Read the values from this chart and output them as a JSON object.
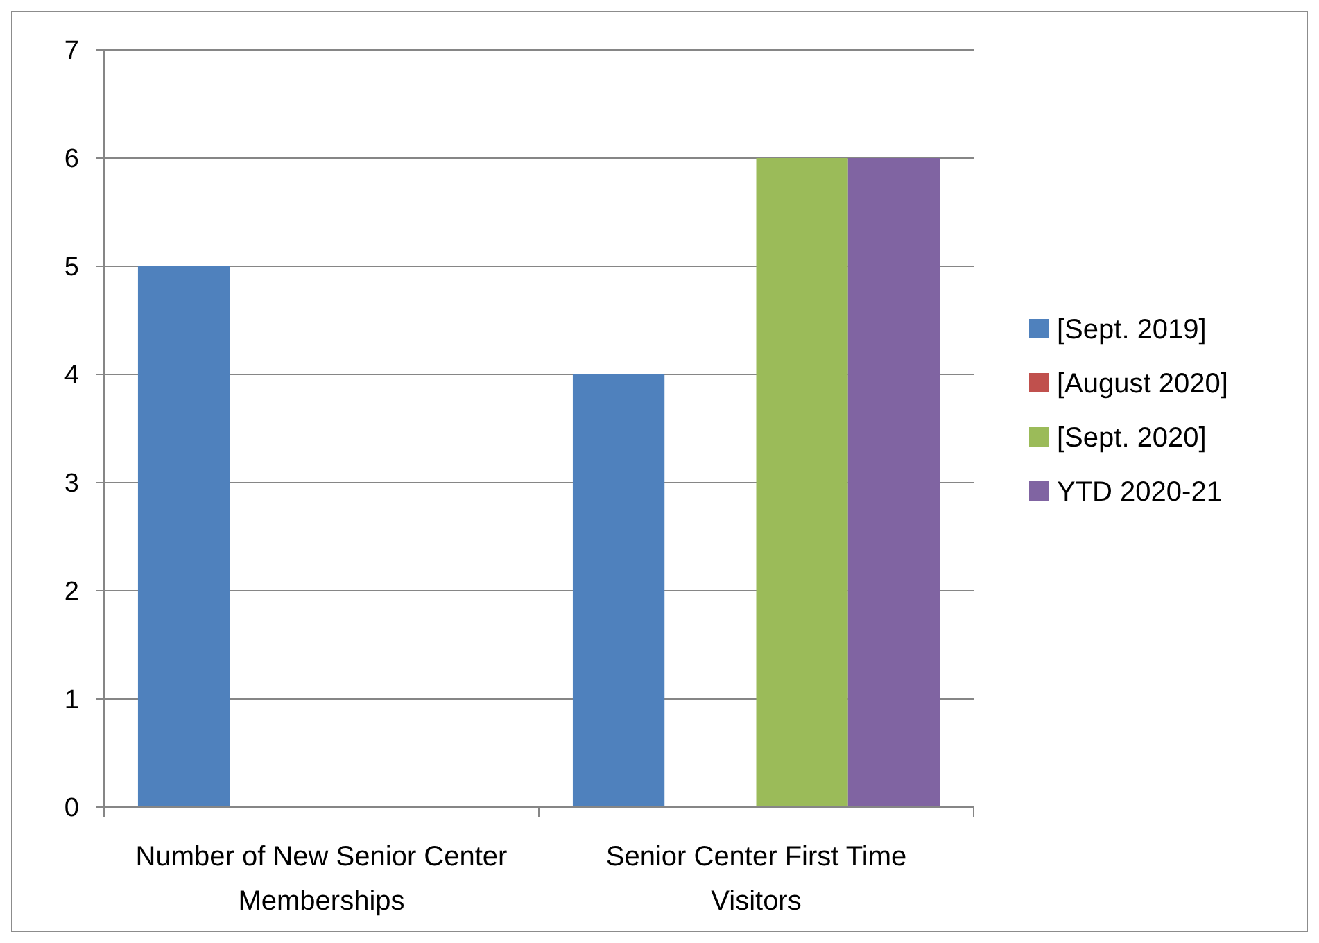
{
  "chart_data": {
    "type": "bar",
    "categories": [
      "Number of New Senior Center Memberships",
      "Senior Center First Time Visitors"
    ],
    "series": [
      {
        "name": "[Sept. 2019]",
        "color": "#4f81bd",
        "values": [
          5,
          4
        ]
      },
      {
        "name": "[August 2020]",
        "color": "#c0504d",
        "values": [
          0,
          0
        ]
      },
      {
        "name": "[Sept. 2020]",
        "color": "#9bbb59",
        "values": [
          0,
          6
        ]
      },
      {
        "name": "YTD 2020-21",
        "color": "#8064a2",
        "values": [
          0,
          6
        ]
      }
    ],
    "ylim": [
      0,
      7
    ],
    "yticks": [
      0,
      1,
      2,
      3,
      4,
      5,
      6,
      7
    ],
    "grid": "y",
    "legend": "right"
  }
}
